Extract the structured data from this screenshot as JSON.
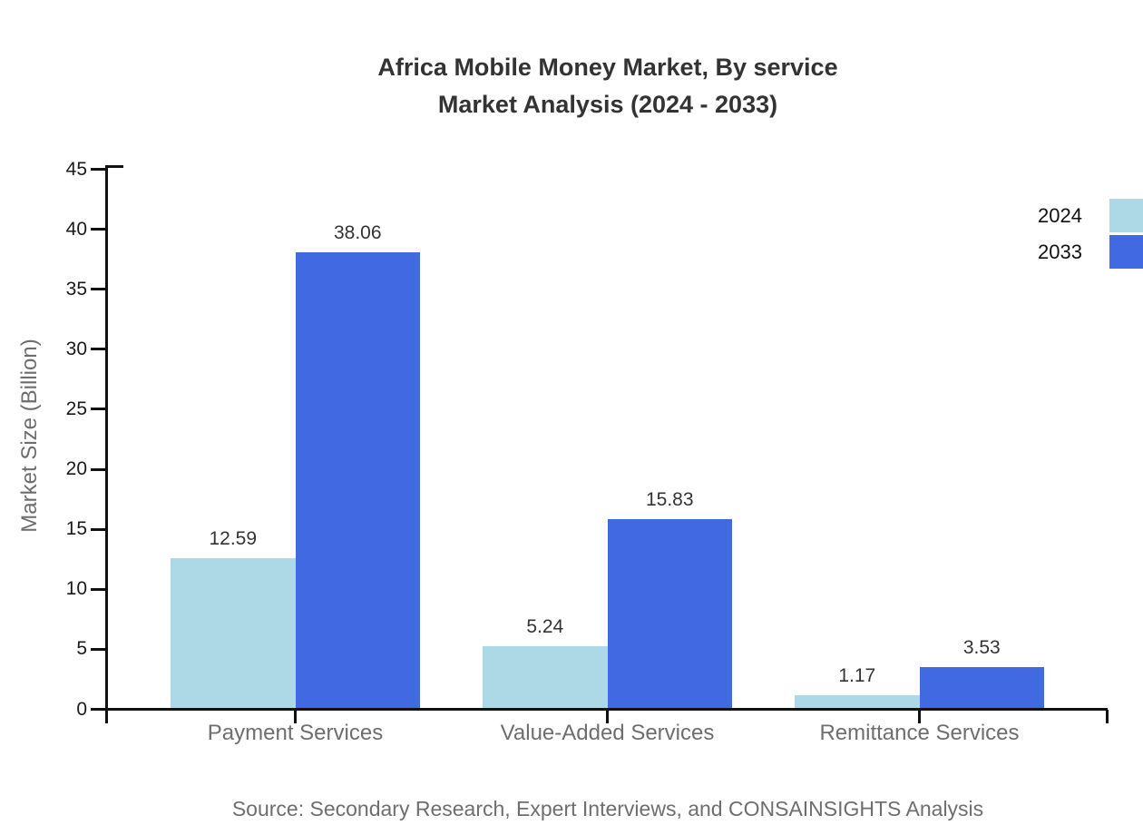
{
  "page": {
    "title_line1": "Africa Mobile Money Market, By service",
    "title_line2": "Market Analysis (2024 - 2033)",
    "source": "Source: Secondary Research, Expert Interviews, and CONSAINSIGHTS Analysis"
  },
  "colors": {
    "series_2024": "#ADD8E6",
    "series_2033": "#4169E1",
    "axis_line": "#111111",
    "title_text": "#333333",
    "tick_label_text": "#1a1a1a",
    "category_text": "#6e6e6e",
    "value_label_text": "#333333"
  },
  "legend": {
    "items": [
      {
        "label": "2024",
        "color": "#ADD8E6"
      },
      {
        "label": "2033",
        "color": "#4169E1"
      }
    ]
  },
  "chart_data": {
    "type": "bar",
    "title": "Africa Mobile Money Market, By service Market Analysis (2024 - 2033)",
    "categories": [
      "Payment Services",
      "Value-Added Services",
      "Remittance Services"
    ],
    "series": [
      {
        "name": "2024",
        "color": "#ADD8E6",
        "values": [
          12.59,
          5.24,
          1.17
        ]
      },
      {
        "name": "2033",
        "color": "#4169E1",
        "values": [
          38.06,
          15.83,
          3.53
        ]
      }
    ],
    "value_labels": [
      [
        "12.59",
        "5.24",
        "1.17"
      ],
      [
        "38.06",
        "15.83",
        "3.53"
      ]
    ],
    "xlabel": "",
    "ylabel": "Market Size (Billion)",
    "ylim": [
      0,
      45
    ],
    "ytick_step": 5,
    "yticks": [
      0,
      5,
      10,
      15,
      20,
      25,
      30,
      35,
      40,
      45
    ],
    "grid": false,
    "data_labels": true,
    "legend_position": "top-right"
  }
}
